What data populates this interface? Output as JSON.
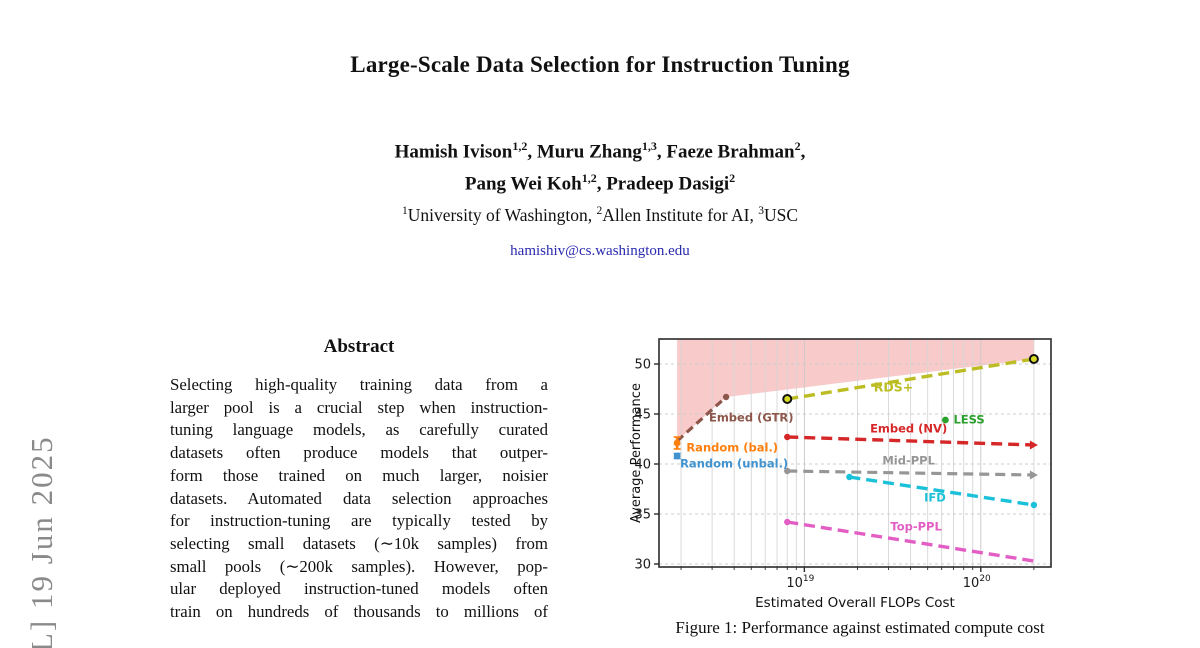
{
  "watermark": {
    "text": "L]  19 Jun 2025"
  },
  "paper": {
    "title": "Large-Scale Data Selection for Instruction Tuning",
    "authors_line1": [
      {
        "t": "Hamish Ivison",
        "s": "1,2",
        "a": ", "
      },
      {
        "t": "Muru Zhang",
        "s": "1,3",
        "a": ", "
      },
      {
        "t": "Faeze Brahman",
        "s": "2",
        "a": ","
      }
    ],
    "authors_line2": [
      {
        "t": "Pang Wei Koh",
        "s": "1,2",
        "a": ", "
      },
      {
        "t": "Pradeep Dasigi",
        "s": "2",
        "a": ""
      }
    ],
    "affiliations": [
      {
        "s": "1",
        "t": "University of Washington",
        "a": ", "
      },
      {
        "s": "2",
        "t": "Allen Institute for AI",
        "a": ", "
      },
      {
        "s": "3",
        "t": "USC",
        "a": ""
      }
    ],
    "email": "hamishiv@cs.washington.edu"
  },
  "abstract": {
    "heading": "Abstract",
    "lines": [
      "Selecting high-quality training data from a",
      "larger pool is a crucial step when instruction-",
      "tuning language models, as carefully curated",
      "datasets often produce models that outper-",
      "form those trained on much larger, noisier",
      "datasets. Automated data selection approaches",
      "for instruction-tuning are typically tested by",
      "selecting small datasets (∼10k samples) from",
      "small pools (∼200k samples). However, pop-",
      "ular deployed instruction-tuned models often",
      "train on hundreds of thousands to millions of"
    ]
  },
  "figure": {
    "caption": "Figure 1: Performance against estimated compute cost"
  },
  "chart_data": {
    "type": "line",
    "xlabel": "Estimated Overall FLOPs Cost",
    "ylabel": "Average Performance",
    "xscale": "log",
    "xlim": [
      1.5e+18,
      2.5e+20
    ],
    "ylim": [
      29.7,
      52.5
    ],
    "yticks": [
      30,
      35,
      40,
      45,
      50
    ],
    "xticks": [
      {
        "value": 1e+19,
        "base": "10",
        "exp": "19"
      },
      {
        "value": 1e+20,
        "base": "10",
        "exp": "20"
      }
    ],
    "grid": {
      "vertical": "solid-log-minor-and-major",
      "horizontal": "dashed-at-yticks"
    },
    "shaded_region": {
      "color": "#f08080",
      "opacity": 0.42,
      "points": [
        [
          1.9e+18,
          52.5
        ],
        [
          1.9e+18,
          42.3
        ],
        [
          3.6e+18,
          46.7
        ],
        [
          2e+20,
          50.5
        ],
        [
          2e+20,
          52.5
        ]
      ]
    },
    "series": [
      {
        "name": "Embed (GTR)",
        "color": "#8c564b",
        "points": [
          [
            1.9e+18,
            42.3
          ],
          [
            3.6e+18,
            46.7
          ]
        ],
        "dash": "8 5",
        "width": 3.2,
        "start_marker": "none",
        "end_marker": "dot",
        "label": {
          "text": "Embed (GTR)",
          "x": 5e+18,
          "y": 44.6,
          "anchor": "middle",
          "bold": false
        }
      },
      {
        "name": "RDS+",
        "color": "#bcbd22",
        "points": [
          [
            8e+18,
            46.5
          ],
          [
            2e+20,
            50.5
          ]
        ],
        "dash": "11 6",
        "width": 3.4,
        "start_marker": "ring",
        "end_marker": "ring",
        "label": {
          "text": "RDS+",
          "x": 3.2e+19,
          "y": 47.6,
          "anchor": "middle",
          "bold": true
        }
      },
      {
        "name": "Embed (NV)",
        "color": "#d62728",
        "points": [
          [
            8e+18,
            42.7
          ],
          [
            2e+20,
            41.9
          ]
        ],
        "dash": "11 6",
        "width": 3.4,
        "start_marker": "dot",
        "end_marker": "arrow",
        "label": {
          "text": "Embed (NV)",
          "x": 3.9e+19,
          "y": 43.5,
          "anchor": "middle",
          "bold": false
        }
      },
      {
        "name": "Mid-PPL",
        "color": "#969696",
        "points": [
          [
            8e+18,
            39.3
          ],
          [
            2e+20,
            38.9
          ]
        ],
        "dash": "10 6",
        "width": 3.2,
        "start_marker": "dot",
        "end_marker": "arrow",
        "label": {
          "text": "Mid-PPL",
          "x": 3.9e+19,
          "y": 40.3,
          "anchor": "middle",
          "bold": false
        }
      },
      {
        "name": "IFD",
        "color": "#1ac1d8",
        "points": [
          [
            1.8e+19,
            38.7
          ],
          [
            2e+20,
            35.9
          ]
        ],
        "dash": "11 6",
        "width": 3.4,
        "start_marker": "dot",
        "end_marker": "dot",
        "label": {
          "text": "IFD",
          "x": 5.5e+19,
          "y": 36.6,
          "anchor": "middle",
          "bold": false
        }
      },
      {
        "name": "Top-PPL",
        "color": "#e35ec4",
        "points": [
          [
            8e+18,
            34.2
          ],
          [
            2e+20,
            30.3
          ]
        ],
        "dash": "11 6",
        "width": 3.4,
        "start_marker": "dot",
        "end_marker": "none",
        "label": {
          "text": "Top-PPL",
          "x": 4.3e+19,
          "y": 33.7,
          "anchor": "middle",
          "bold": false
        }
      }
    ],
    "scatter": [
      {
        "name": "Random (bal.)",
        "color": "#ff7f0e",
        "x": 1.9e+18,
        "y": 42.1,
        "err": 0.6,
        "label": {
          "text": "Random (bal.)",
          "x": 3.9e+18,
          "y": 41.6,
          "anchor": "middle"
        }
      },
      {
        "name": "Random (unbal.)",
        "color": "#4193d0",
        "x": 1.9e+18,
        "y": 40.8,
        "err": 0.25,
        "label": {
          "text": "Random (unbal.)",
          "x": 4e+18,
          "y": 40.0,
          "anchor": "middle"
        }
      },
      {
        "name": "LESS",
        "color": "#2ca02c",
        "x": 6.3e+19,
        "y": 44.4,
        "err": 0,
        "label": {
          "text": "LESS",
          "x": 7e+19,
          "y": 44.4,
          "anchor": "start"
        }
      }
    ]
  }
}
